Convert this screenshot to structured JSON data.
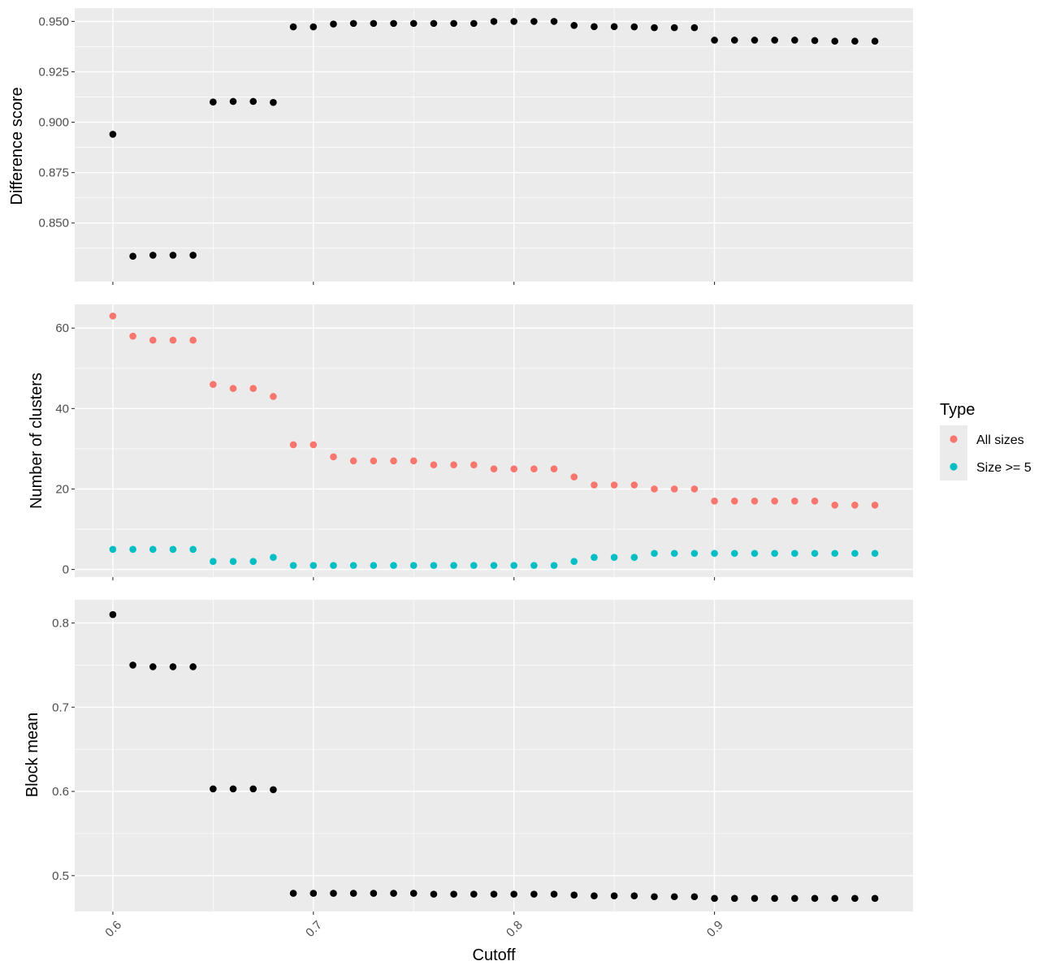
{
  "chart_data": [
    {
      "type": "scatter",
      "panel": "top",
      "ylabel": "Difference score",
      "xlabel": "",
      "xlim": [
        0.581,
        0.999
      ],
      "ylim": [
        0.8209,
        0.9566
      ],
      "y_ticks": [
        0.85,
        0.875,
        0.9,
        0.925,
        0.95
      ],
      "y_tick_labels": [
        "0.850",
        "0.875",
        "0.900",
        "0.925",
        "0.950"
      ],
      "grid": true,
      "series": [
        {
          "color": "#000000",
          "x": [
            0.6,
            0.61,
            0.62,
            0.63,
            0.64,
            0.65,
            0.66,
            0.67,
            0.68,
            0.69,
            0.7,
            0.71,
            0.72,
            0.73,
            0.74,
            0.75,
            0.76,
            0.77,
            0.78,
            0.79,
            0.8,
            0.81,
            0.82,
            0.83,
            0.84,
            0.85,
            0.86,
            0.87,
            0.88,
            0.89,
            0.9,
            0.91,
            0.92,
            0.93,
            0.94,
            0.95,
            0.96,
            0.97,
            0.98
          ],
          "y": [
            0.894,
            0.8335,
            0.834,
            0.834,
            0.834,
            0.91,
            0.9103,
            0.9103,
            0.9098,
            0.9473,
            0.9473,
            0.9487,
            0.949,
            0.949,
            0.949,
            0.949,
            0.949,
            0.949,
            0.949,
            0.95,
            0.95,
            0.95,
            0.95,
            0.948,
            0.9474,
            0.9474,
            0.9473,
            0.9469,
            0.9469,
            0.9469,
            0.9407,
            0.9407,
            0.9407,
            0.9407,
            0.9407,
            0.9405,
            0.9402,
            0.9402,
            0.9402
          ]
        }
      ]
    },
    {
      "type": "scatter",
      "panel": "middle",
      "ylabel": "Number of clusters",
      "xlabel": "",
      "xlim": [
        0.581,
        0.999
      ],
      "ylim": [
        -1.9,
        65.9
      ],
      "y_ticks": [
        0,
        20,
        40,
        60
      ],
      "y_tick_labels": [
        "0",
        "20",
        "40",
        "60"
      ],
      "grid": true,
      "legend": {
        "title": "Type",
        "position": "right"
      },
      "series": [
        {
          "name": "All sizes",
          "color": "#F8766D",
          "x": [
            0.6,
            0.61,
            0.62,
            0.63,
            0.64,
            0.65,
            0.66,
            0.67,
            0.68,
            0.69,
            0.7,
            0.71,
            0.72,
            0.73,
            0.74,
            0.75,
            0.76,
            0.77,
            0.78,
            0.79,
            0.8,
            0.81,
            0.82,
            0.83,
            0.84,
            0.85,
            0.86,
            0.87,
            0.88,
            0.89,
            0.9,
            0.91,
            0.92,
            0.93,
            0.94,
            0.95,
            0.96,
            0.97,
            0.98
          ],
          "y": [
            63,
            58,
            57,
            57,
            57,
            46,
            45,
            45,
            43,
            31,
            31,
            28,
            27,
            27,
            27,
            27,
            26,
            26,
            26,
            25,
            25,
            25,
            25,
            23,
            21,
            21,
            21,
            20,
            20,
            20,
            17,
            17,
            17,
            17,
            17,
            17,
            16,
            16,
            16
          ]
        },
        {
          "name": "Size >= 5",
          "color": "#00BFC4",
          "x": [
            0.6,
            0.61,
            0.62,
            0.63,
            0.64,
            0.65,
            0.66,
            0.67,
            0.68,
            0.69,
            0.7,
            0.71,
            0.72,
            0.73,
            0.74,
            0.75,
            0.76,
            0.77,
            0.78,
            0.79,
            0.8,
            0.81,
            0.82,
            0.83,
            0.84,
            0.85,
            0.86,
            0.87,
            0.88,
            0.89,
            0.9,
            0.91,
            0.92,
            0.93,
            0.94,
            0.95,
            0.96,
            0.97,
            0.98
          ],
          "y": [
            5,
            5,
            5,
            5,
            5,
            2,
            2,
            2,
            3,
            1,
            1,
            1,
            1,
            1,
            1,
            1,
            1,
            1,
            1,
            1,
            1,
            1,
            1,
            2,
            3,
            3,
            3,
            4,
            4,
            4,
            4,
            4,
            4,
            4,
            4,
            4,
            4,
            4,
            4
          ]
        }
      ]
    },
    {
      "type": "scatter",
      "panel": "bottom",
      "ylabel": "Block mean",
      "xlabel": "Cutoff",
      "xlim": [
        0.581,
        0.999
      ],
      "ylim": [
        0.4574,
        0.8275
      ],
      "y_ticks": [
        0.5,
        0.6,
        0.7,
        0.8
      ],
      "y_tick_labels": [
        "0.5",
        "0.6",
        "0.7",
        "0.8"
      ],
      "x_ticks": [
        0.6,
        0.7,
        0.8,
        0.9
      ],
      "x_tick_labels": [
        "0.6",
        "0.7",
        "0.8",
        "0.9"
      ],
      "grid": true,
      "series": [
        {
          "color": "#000000",
          "x": [
            0.6,
            0.61,
            0.62,
            0.63,
            0.64,
            0.65,
            0.66,
            0.67,
            0.68,
            0.69,
            0.7,
            0.71,
            0.72,
            0.73,
            0.74,
            0.75,
            0.76,
            0.77,
            0.78,
            0.79,
            0.8,
            0.81,
            0.82,
            0.83,
            0.84,
            0.85,
            0.86,
            0.87,
            0.88,
            0.89,
            0.9,
            0.91,
            0.92,
            0.93,
            0.94,
            0.95,
            0.96,
            0.97,
            0.98
          ],
          "y": [
            0.81,
            0.75,
            0.748,
            0.748,
            0.748,
            0.603,
            0.603,
            0.603,
            0.602,
            0.479,
            0.479,
            0.479,
            0.479,
            0.479,
            0.479,
            0.479,
            0.478,
            0.478,
            0.478,
            0.478,
            0.478,
            0.478,
            0.478,
            0.477,
            0.476,
            0.476,
            0.476,
            0.475,
            0.475,
            0.475,
            0.473,
            0.473,
            0.473,
            0.473,
            0.473,
            0.473,
            0.473,
            0.473,
            0.473
          ]
        }
      ]
    }
  ]
}
